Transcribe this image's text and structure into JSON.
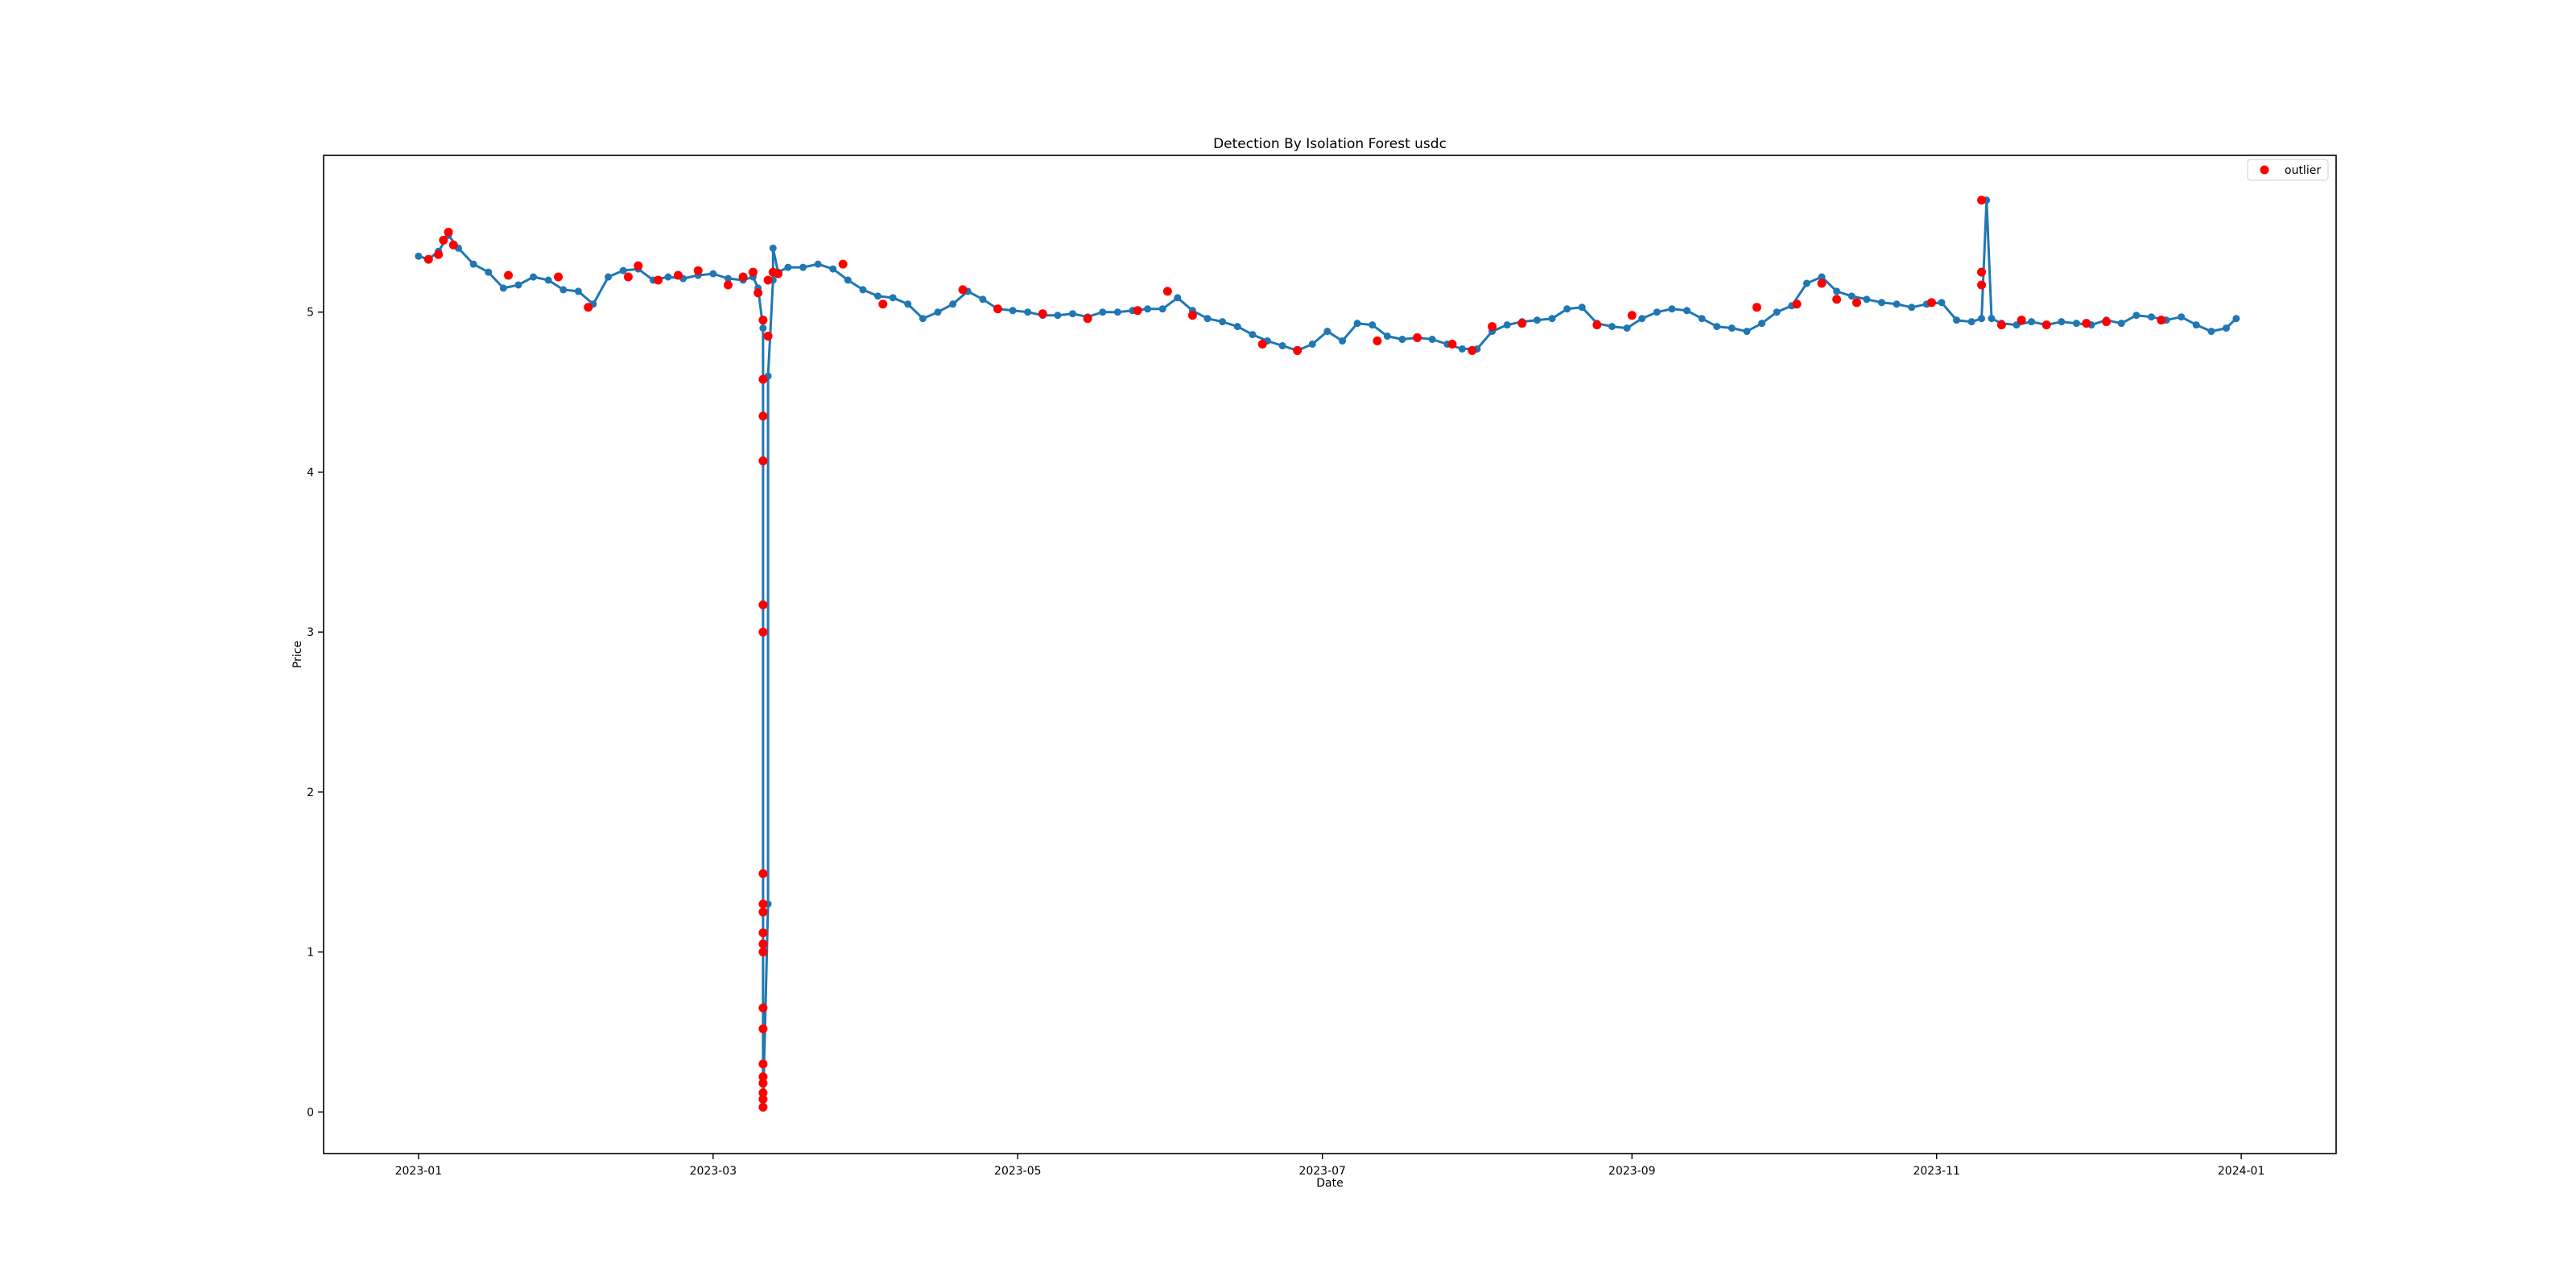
{
  "chart_data": {
    "type": "line",
    "title": "Detection By Isolation Forest usdc",
    "xlabel": "Date",
    "ylabel": "Price",
    "x_ticks": [
      "2023-01",
      "2023-03",
      "2023-05",
      "2023-07",
      "2023-09",
      "2023-11",
      "2024-01"
    ],
    "y_ticks": [
      0,
      1,
      2,
      3,
      4,
      5
    ],
    "xlim": [
      "2022-12-13",
      "2024-01-20"
    ],
    "ylim": [
      -0.26,
      5.98
    ],
    "legend": {
      "placement": "top-right",
      "entries": [
        "outlier"
      ]
    },
    "grid": false,
    "colors": {
      "price_line": "#1f77b4",
      "outlier": "#ff0000"
    },
    "series": [
      {
        "marker": "circle-line",
        "color": "#1f77b4",
        "x": [
          "2023-01-01",
          "2023-01-03",
          "2023-01-05",
          "2023-01-07",
          "2023-01-09",
          "2023-01-12",
          "2023-01-15",
          "2023-01-18",
          "2023-01-21",
          "2023-01-24",
          "2023-01-27",
          "2023-01-30",
          "2023-02-02",
          "2023-02-05",
          "2023-02-08",
          "2023-02-11",
          "2023-02-14",
          "2023-02-17",
          "2023-02-20",
          "2023-02-23",
          "2023-02-26",
          "2023-03-01",
          "2023-03-04",
          "2023-03-07",
          "2023-03-09",
          "2023-03-10",
          "2023-03-11",
          "2023-03-11",
          "2023-03-11",
          "2023-03-12",
          "2023-03-12",
          "2023-03-13",
          "2023-03-13",
          "2023-03-14",
          "2023-03-16",
          "2023-03-19",
          "2023-03-22",
          "2023-03-25",
          "2023-03-28",
          "2023-03-31",
          "2023-04-03",
          "2023-04-06",
          "2023-04-09",
          "2023-04-12",
          "2023-04-15",
          "2023-04-18",
          "2023-04-21",
          "2023-04-24",
          "2023-04-27",
          "2023-04-30",
          "2023-05-03",
          "2023-05-06",
          "2023-05-09",
          "2023-05-12",
          "2023-05-15",
          "2023-05-18",
          "2023-05-21",
          "2023-05-24",
          "2023-05-27",
          "2023-05-30",
          "2023-06-02",
          "2023-06-05",
          "2023-06-08",
          "2023-06-11",
          "2023-06-14",
          "2023-06-17",
          "2023-06-20",
          "2023-06-23",
          "2023-06-26",
          "2023-06-29",
          "2023-07-02",
          "2023-07-05",
          "2023-07-08",
          "2023-07-11",
          "2023-07-14",
          "2023-07-17",
          "2023-07-20",
          "2023-07-23",
          "2023-07-26",
          "2023-07-29",
          "2023-08-01",
          "2023-08-04",
          "2023-08-07",
          "2023-08-10",
          "2023-08-13",
          "2023-08-16",
          "2023-08-19",
          "2023-08-22",
          "2023-08-25",
          "2023-08-28",
          "2023-08-31",
          "2023-09-03",
          "2023-09-06",
          "2023-09-09",
          "2023-09-12",
          "2023-09-15",
          "2023-09-18",
          "2023-09-21",
          "2023-09-24",
          "2023-09-27",
          "2023-09-30",
          "2023-10-03",
          "2023-10-06",
          "2023-10-09",
          "2023-10-12",
          "2023-10-15",
          "2023-10-18",
          "2023-10-21",
          "2023-10-24",
          "2023-10-27",
          "2023-10-30",
          "2023-11-02",
          "2023-11-05",
          "2023-11-08",
          "2023-11-10",
          "2023-11-11",
          "2023-11-12",
          "2023-11-14",
          "2023-11-17",
          "2023-11-20",
          "2023-11-23",
          "2023-11-26",
          "2023-11-29",
          "2023-12-02",
          "2023-12-05",
          "2023-12-08",
          "2023-12-11",
          "2023-12-14",
          "2023-12-17",
          "2023-12-20",
          "2023-12-23",
          "2023-12-26",
          "2023-12-29",
          "2023-12-31"
        ],
        "values": [
          5.35,
          5.33,
          5.38,
          5.48,
          5.4,
          5.3,
          5.25,
          5.15,
          5.17,
          5.22,
          5.2,
          5.14,
          5.13,
          5.05,
          5.22,
          5.26,
          5.27,
          5.2,
          5.22,
          5.21,
          5.23,
          5.24,
          5.21,
          5.2,
          5.22,
          5.15,
          4.9,
          3.0,
          0.03,
          1.3,
          4.6,
          5.2,
          5.4,
          5.25,
          5.28,
          5.28,
          5.3,
          5.27,
          5.2,
          5.14,
          5.1,
          5.09,
          5.05,
          4.96,
          5.0,
          5.05,
          5.13,
          5.08,
          5.02,
          5.01,
          5.0,
          4.98,
          4.98,
          4.99,
          4.97,
          5.0,
          5.0,
          5.01,
          5.02,
          5.02,
          5.09,
          5.01,
          4.96,
          4.94,
          4.91,
          4.86,
          4.82,
          4.79,
          4.76,
          4.8,
          4.88,
          4.82,
          4.93,
          4.92,
          4.85,
          4.83,
          4.84,
          4.83,
          4.8,
          4.77,
          4.77,
          4.88,
          4.92,
          4.94,
          4.95,
          4.96,
          5.02,
          5.03,
          4.93,
          4.91,
          4.9,
          4.96,
          5.0,
          5.02,
          5.01,
          4.96,
          4.91,
          4.9,
          4.88,
          4.93,
          5.0,
          5.04,
          5.18,
          5.22,
          5.13,
          5.1,
          5.08,
          5.06,
          5.05,
          5.03,
          5.05,
          5.06,
          4.95,
          4.94,
          4.96,
          5.7,
          4.96,
          4.93,
          4.92,
          4.94,
          4.92,
          4.94,
          4.93,
          4.92,
          4.95,
          4.93,
          4.98,
          4.97,
          4.95,
          4.97,
          4.92,
          4.88,
          4.9,
          4.96
        ]
      },
      {
        "name": "outlier",
        "marker": "circle",
        "color": "#ff0000",
        "x": [
          "2023-01-03",
          "2023-01-05",
          "2023-01-06",
          "2023-01-07",
          "2023-01-08",
          "2023-01-19",
          "2023-01-29",
          "2023-02-04",
          "2023-02-12",
          "2023-02-14",
          "2023-02-18",
          "2023-02-22",
          "2023-02-26",
          "2023-03-04",
          "2023-03-07",
          "2023-03-09",
          "2023-03-10",
          "2023-03-11",
          "2023-03-11",
          "2023-03-11",
          "2023-03-11",
          "2023-03-11",
          "2023-03-11",
          "2023-03-11",
          "2023-03-11",
          "2023-03-11",
          "2023-03-11",
          "2023-03-11",
          "2023-03-11",
          "2023-03-11",
          "2023-03-11",
          "2023-03-11",
          "2023-03-11",
          "2023-03-11",
          "2023-03-11",
          "2023-03-11",
          "2023-03-11",
          "2023-03-12",
          "2023-03-12",
          "2023-03-13",
          "2023-03-14",
          "2023-03-27",
          "2023-04-04",
          "2023-04-20",
          "2023-04-27",
          "2023-05-06",
          "2023-05-15",
          "2023-05-25",
          "2023-05-31",
          "2023-06-05",
          "2023-06-19",
          "2023-06-26",
          "2023-07-12",
          "2023-07-20",
          "2023-07-27",
          "2023-07-31",
          "2023-08-04",
          "2023-08-10",
          "2023-08-25",
          "2023-09-01",
          "2023-09-26",
          "2023-10-04",
          "2023-10-09",
          "2023-10-12",
          "2023-10-16",
          "2023-10-31",
          "2023-11-10",
          "2023-11-10",
          "2023-11-10",
          "2023-11-14",
          "2023-11-18",
          "2023-11-23",
          "2023-12-01",
          "2023-12-05",
          "2023-12-16"
        ],
        "values": [
          5.33,
          5.36,
          5.45,
          5.5,
          5.42,
          5.23,
          5.22,
          5.03,
          5.22,
          5.29,
          5.2,
          5.23,
          5.26,
          5.17,
          5.22,
          5.25,
          5.12,
          4.95,
          4.58,
          4.35,
          4.07,
          3.17,
          3.0,
          1.49,
          1.3,
          1.25,
          1.12,
          1.05,
          1.0,
          0.65,
          0.52,
          0.3,
          0.22,
          0.18,
          0.12,
          0.08,
          0.03,
          5.2,
          4.85,
          5.25,
          5.24,
          5.3,
          5.05,
          5.14,
          5.02,
          4.99,
          4.96,
          5.01,
          5.13,
          4.98,
          4.8,
          4.76,
          4.82,
          4.84,
          4.8,
          4.76,
          4.91,
          4.93,
          4.92,
          4.98,
          5.03,
          5.05,
          5.18,
          5.08,
          5.06,
          5.06,
          5.7,
          5.25,
          5.17,
          4.92,
          4.95,
          4.92,
          4.93,
          4.94,
          4.95
        ]
      }
    ]
  }
}
